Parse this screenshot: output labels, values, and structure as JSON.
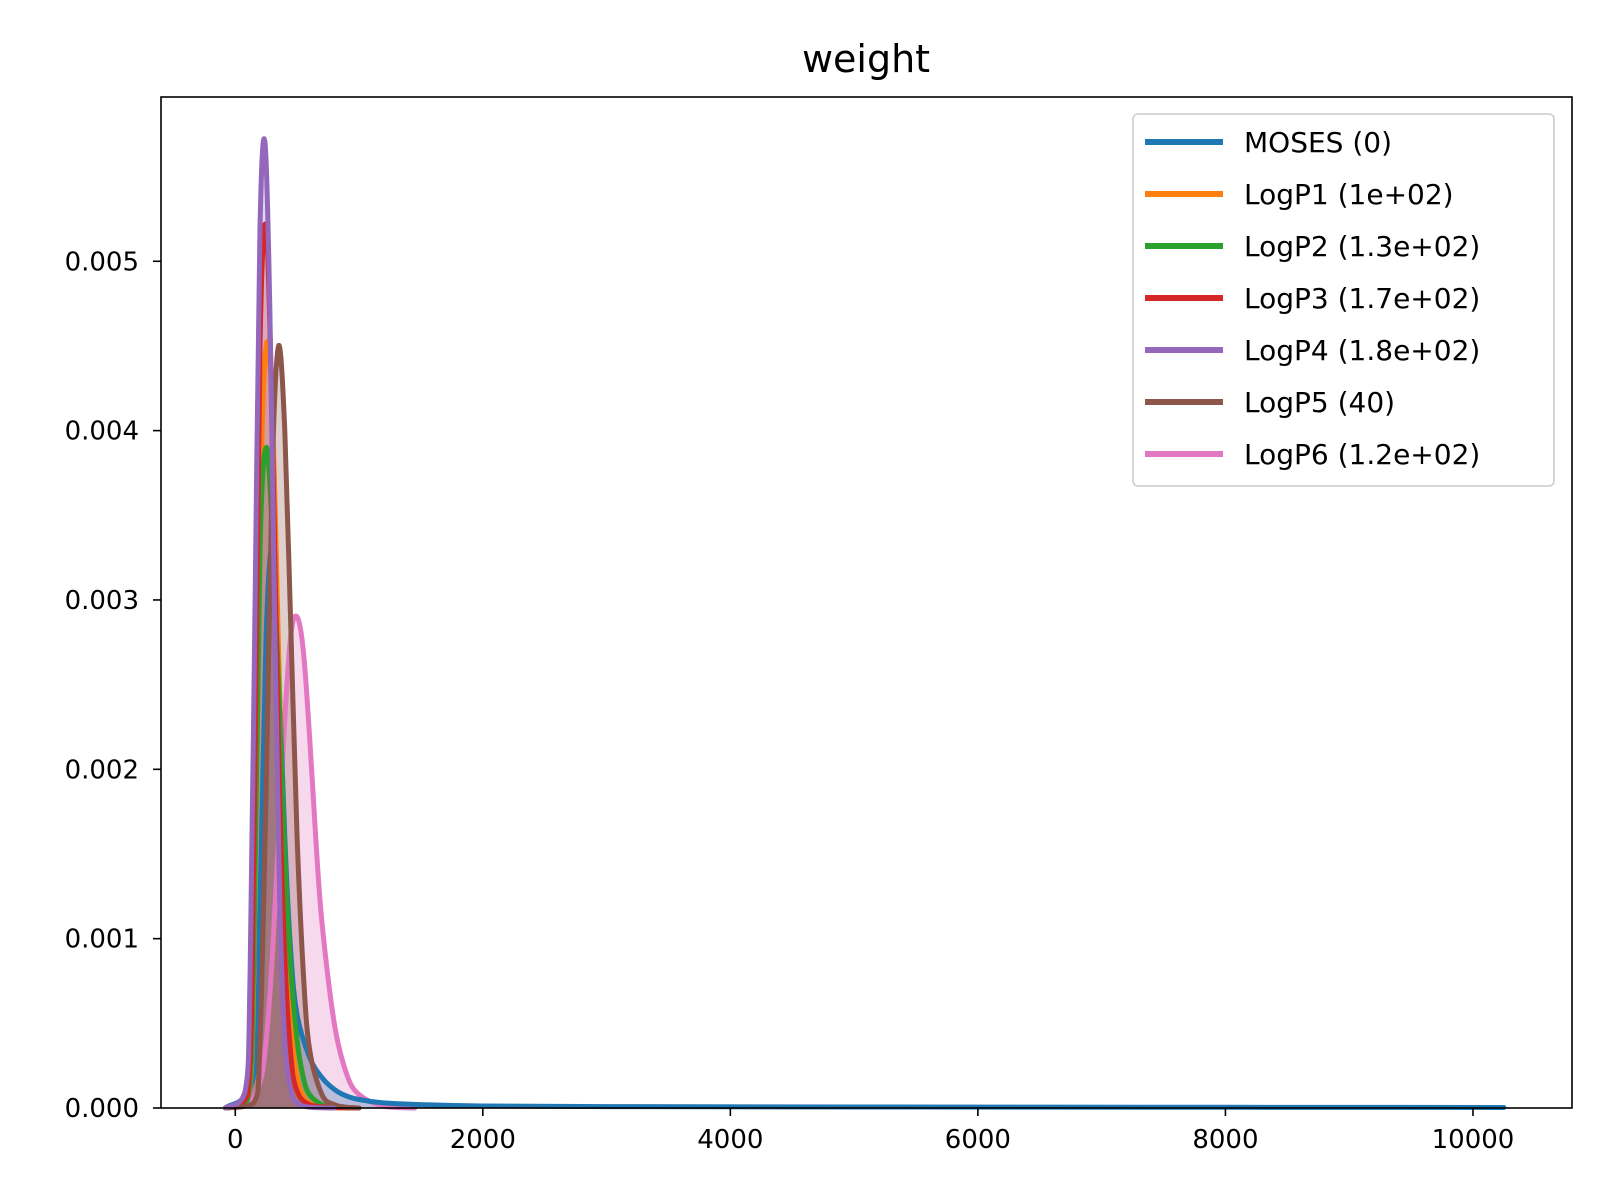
{
  "chart_data": {
    "type": "area",
    "title": "weight",
    "xlabel": "",
    "ylabel": "",
    "xlim": [
      -600,
      10800
    ],
    "ylim": [
      0,
      0.00597
    ],
    "x_ticks": [
      0,
      2000,
      4000,
      6000,
      8000,
      10000
    ],
    "y_ticks": [
      0.0,
      0.001,
      0.002,
      0.003,
      0.004,
      0.005
    ],
    "x_tick_labels": [
      "0",
      "2000",
      "4000",
      "6000",
      "8000",
      "10000"
    ],
    "y_tick_labels": [
      "0.000",
      "0.001",
      "0.002",
      "0.003",
      "0.004",
      "0.005"
    ],
    "grid": false,
    "legend_position": "top-right",
    "series": [
      {
        "name": "MOSES (0)",
        "color": "#1f77b4",
        "x": [
          -80,
          150,
          200,
          250,
          300,
          350,
          400,
          450,
          500,
          600,
          700,
          800,
          900,
          1000,
          1200,
          1500,
          2000,
          3000,
          5000,
          8000,
          10250
        ],
        "y": [
          0,
          0.0002,
          0.0012,
          0.0028,
          0.0033,
          0.0026,
          0.0016,
          0.0009,
          0.00055,
          0.0003,
          0.00018,
          0.00011,
          7e-05,
          5e-05,
          3e-05,
          2e-05,
          1.2e-05,
          8e-06,
          6e-06,
          4e-06,
          3e-06
        ]
      },
      {
        "name": "LogP1 (1e+02)",
        "color": "#ff7f0e",
        "x": [
          -80,
          100,
          150,
          200,
          250,
          300,
          350,
          400,
          450,
          500,
          550,
          600,
          700,
          800,
          1000
        ],
        "y": [
          0,
          5e-05,
          0.0008,
          0.0035,
          0.0045,
          0.0041,
          0.0027,
          0.0013,
          0.0005,
          0.00018,
          7e-05,
          3e-05,
          1e-05,
          2e-06,
          0
        ]
      },
      {
        "name": "LogP2 (1.3e+02)",
        "color": "#2ca02c",
        "x": [
          -80,
          100,
          150,
          200,
          250,
          300,
          350,
          400,
          450,
          500,
          550,
          600,
          700,
          800,
          1000
        ],
        "y": [
          0,
          5e-05,
          0.0009,
          0.0033,
          0.0039,
          0.0034,
          0.0025,
          0.0015,
          0.0008,
          0.0004,
          0.00018,
          8e-05,
          2e-05,
          5e-06,
          0
        ]
      },
      {
        "name": "LogP3 (1.7e+02)",
        "color": "#d62728",
        "x": [
          -80,
          100,
          150,
          200,
          250,
          300,
          350,
          400,
          450,
          500,
          600,
          800,
          1000
        ],
        "y": [
          0,
          8e-05,
          0.0015,
          0.0045,
          0.0052,
          0.004,
          0.0021,
          0.0009,
          0.0003,
          0.0001,
          2e-05,
          3e-06,
          0
        ]
      },
      {
        "name": "LogP4 (1.8e+02)",
        "color": "#9467bd",
        "x": [
          -80,
          80,
          120,
          160,
          200,
          240,
          280,
          320,
          360,
          400,
          450,
          500,
          600,
          800
        ],
        "y": [
          0,
          0.0001,
          0.0008,
          0.003,
          0.0052,
          0.0057,
          0.0047,
          0.0028,
          0.0012,
          0.0004,
          0.0001,
          3e-05,
          5e-06,
          0
        ]
      },
      {
        "name": "LogP5 (40)",
        "color": "#8c564b",
        "x": [
          -80,
          150,
          200,
          250,
          300,
          350,
          400,
          450,
          500,
          550,
          600,
          700,
          800,
          900,
          1000
        ],
        "y": [
          0,
          3e-05,
          0.0004,
          0.0019,
          0.0038,
          0.0045,
          0.004,
          0.0028,
          0.0016,
          0.0008,
          0.00035,
          8e-05,
          2e-05,
          5e-06,
          0
        ]
      },
      {
        "name": "LogP6 (1.2e+02)",
        "color": "#e377c2",
        "x": [
          -80,
          100,
          200,
          250,
          300,
          350,
          400,
          450,
          500,
          550,
          600,
          650,
          700,
          800,
          900,
          1000,
          1200,
          1450
        ],
        "y": [
          0,
          2e-05,
          0.00015,
          0.0004,
          0.0009,
          0.0016,
          0.0023,
          0.0028,
          0.0029,
          0.0027,
          0.0022,
          0.0016,
          0.0011,
          0.0005,
          0.0002,
          8e-05,
          1e-05,
          0
        ]
      }
    ]
  }
}
